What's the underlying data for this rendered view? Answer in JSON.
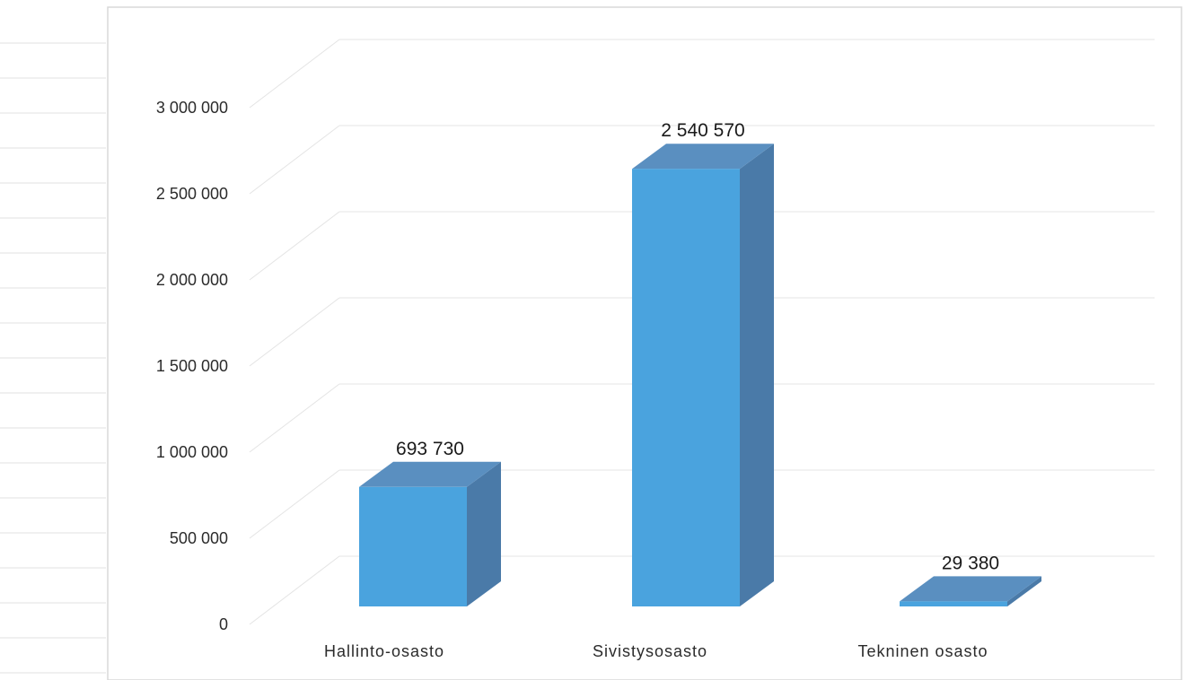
{
  "chart_data": {
    "type": "bar",
    "three_d": true,
    "categories": [
      "Hallinto-osasto",
      "Sivistysosasto",
      "Tekninen osasto"
    ],
    "values": [
      693730,
      2540570,
      29380
    ],
    "value_labels": [
      "693 730",
      "2 540 570",
      "29 380"
    ],
    "yticks": [
      {
        "value": 0,
        "label": "0"
      },
      {
        "value": 500000,
        "label": "500 000"
      },
      {
        "value": 1000000,
        "label": "1 000 000"
      },
      {
        "value": 1500000,
        "label": "1 500 000"
      },
      {
        "value": 2000000,
        "label": "2 000 000"
      },
      {
        "value": 2500000,
        "label": "2 500 000"
      },
      {
        "value": 3000000,
        "label": "3 000 000"
      }
    ],
    "ylim": [
      0,
      3000000
    ],
    "grid": true,
    "legend": "none",
    "colors": {
      "bar_front": "#4aa3de",
      "bar_side": "#4a7aa8",
      "bar_top": "#5a8fc0",
      "grid": "#e4e4e4",
      "frame": "#d8d8d8"
    }
  }
}
